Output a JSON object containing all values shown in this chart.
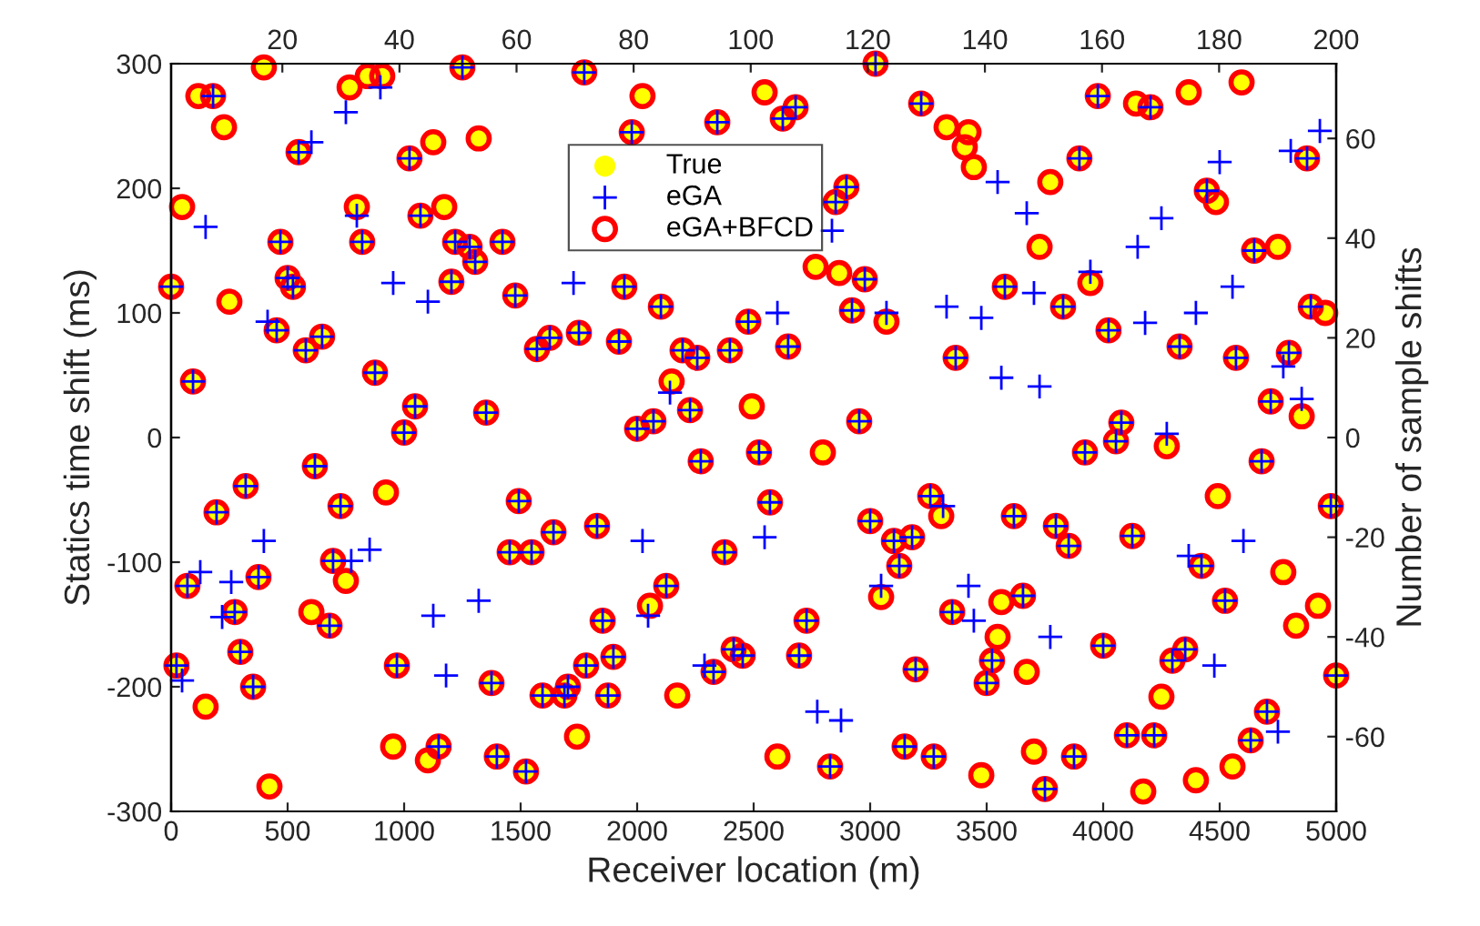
{
  "chart_data": {
    "type": "scatter",
    "xlabel": "Receiver location (m)",
    "ylabel": "Statics time shift (ms)",
    "y2label": "Number of sample shifts",
    "xlim": [
      0,
      5000
    ],
    "xticks": [
      0,
      500,
      1000,
      1500,
      2000,
      2500,
      3000,
      3500,
      4000,
      4500,
      5000
    ],
    "ylim": [
      -300,
      300
    ],
    "yticks": [
      -300,
      -200,
      -100,
      0,
      100,
      200,
      300
    ],
    "y2lim": [
      -75,
      75
    ],
    "y2ticks": [
      -60,
      -40,
      -20,
      0,
      20,
      40,
      60
    ],
    "x2lim": [
      1,
      200
    ],
    "x2ticks": [
      20,
      40,
      60,
      80,
      100,
      120,
      140,
      160,
      180,
      200
    ],
    "grid": false,
    "legend": "top",
    "series": [
      {
        "name": "True",
        "color": "#ffff00",
        "marker": "circle",
        "x": [
          0,
          47,
          94,
          117,
          180,
          227,
          23,
          70,
          195,
          148,
          273,
          320,
          297,
          352,
          398,
          453,
          375,
          469,
          500,
          523,
          422,
          547,
          766,
          844,
          906,
          797,
          820,
          250,
          578,
          648,
          875,
          1047,
          1000,
          1352,
          1023,
          1125,
          1320,
          1250,
          1172,
          1070,
          1203,
          1219,
          1281,
          1305,
          1422,
          1477,
          1570,
          1625,
          1750,
          1773,
          2023,
          1977,
          2344,
          2547,
          2625,
          2680,
          3023,
          3219,
          3328,
          3422,
          3406,
          3445,
          2898,
          2852,
          2766,
          2867,
          2977,
          1945,
          2102,
          2477,
          2922,
          3070,
          3578,
          1922,
          2195,
          2258,
          2398,
          2648,
          3367,
          2148,
          2227,
          2492,
          2953,
          2000,
          2070,
          3977,
          4141,
          4203,
          4367,
          4594,
          3898,
          3773,
          3727,
          3945,
          3828,
          4445,
          4484,
          4023,
          4328,
          4570,
          4648,
          4750,
          4891,
          4953,
          4875,
          4797,
          4719,
          4852,
          4078,
          4055,
          617,
          727,
          922,
          1492,
          1641,
          1453,
          1547,
          1828,
          695,
          750,
          602,
          680,
          969,
          1375,
          1594,
          1688,
          1703,
          1781,
          1742,
          953,
          1102,
          1148,
          1398,
          1523,
          2273,
          2523,
          2797,
          2570,
          2375,
          3000,
          3102,
          3180,
          3258,
          3305,
          3125,
          3047,
          3352,
          3563,
          3547,
          3523,
          3500,
          2125,
          2055,
          1852,
          2727,
          1898,
          1875,
          2172,
          2328,
          2414,
          2453,
          2695,
          3195,
          2602,
          2828,
          3148,
          3273,
          3477,
          3922,
          4273,
          4680,
          4492,
          4977,
          3617,
          3797,
          3852,
          4125,
          4422,
          4773,
          3656,
          4523,
          4922,
          4828,
          4000,
          4352,
          4297,
          5000,
          3672,
          4250,
          4703,
          4102,
          4219,
          4633,
          3703,
          3875,
          4555,
          4398,
          3750,
          4172
        ],
        "values": [
          121,
          185,
          45,
          274,
          274,
          249,
          -183,
          -119,
          -60,
          -216,
          -140,
          -39,
          -172,
          -200,
          297,
          86,
          -112,
          157,
          128,
          121,
          -280,
          229,
          281,
          290,
          290,
          185,
          157,
          109,
          70,
          81,
          52,
          25,
          4,
          20,
          224,
          237,
          240,
          297,
          185,
          178,
          125,
          157,
          153,
          141,
          157,
          114,
          71,
          80,
          84,
          293,
          274,
          245,
          253,
          277,
          256,
          265,
          300,
          268,
          249,
          245,
          233,
          217,
          201,
          189,
          137,
          132,
          127,
          121,
          105,
          93,
          102,
          93,
          121,
          77,
          70,
          64,
          70,
          73,
          64,
          45,
          22,
          25,
          13,
          7,
          13,
          274,
          268,
          265,
          277,
          285,
          224,
          205,
          153,
          124,
          105,
          198,
          189,
          86,
          73,
          64,
          150,
          153,
          105,
          100,
          224,
          68,
          29,
          17,
          12,
          -3,
          -23,
          -55,
          -44,
          -51,
          -76,
          -92,
          -92,
          -71,
          -99,
          -115,
          -140,
          -151,
          -183,
          -197,
          -207,
          -207,
          -200,
          -183,
          -240,
          -248,
          -259,
          -248,
          -256,
          -268,
          -19,
          -12,
          -12,
          -52,
          -92,
          -67,
          -83,
          -80,
          -47,
          -63,
          -103,
          -128,
          -140,
          -132,
          -160,
          -179,
          -197,
          -119,
          -135,
          -147,
          -147,
          -176,
          -207,
          -207,
          -188,
          -170,
          -175,
          -175,
          -186,
          -256,
          -264,
          -248,
          -256,
          -271,
          -12,
          -7,
          -19,
          -47,
          -55,
          -63,
          -71,
          -87,
          -79,
          -103,
          -108,
          -127,
          -131,
          -135,
          -151,
          -167,
          -170,
          -179,
          -191,
          -188,
          -208,
          -220,
          -239,
          -239,
          -243,
          -252,
          -256,
          -264,
          -275,
          -282,
          -284
        ]
      },
      {
        "name": "eGA",
        "color": "#0000ff",
        "marker": "cross",
        "x": [
          0,
          94,
          180,
          23,
          70,
          195,
          273,
          320,
          297,
          352,
          453,
          375,
          469,
          500,
          523,
          547,
          820,
          578,
          648,
          875,
          1047,
          1000,
          1352,
          1023,
          1250,
          1070,
          1203,
          1219,
          1281,
          1305,
          1422,
          1477,
          1570,
          1625,
          1750,
          1773,
          1977,
          2344,
          2625,
          2680,
          3023,
          3219,
          2898,
          2852,
          2977,
          1945,
          2102,
          2477,
          2922,
          3578,
          1922,
          2195,
          2258,
          2398,
          2648,
          3367,
          2227,
          2953,
          2000,
          2070,
          3977,
          4203,
          3898,
          3828,
          4445,
          4023,
          4328,
          4570,
          4648,
          4891,
          4875,
          4797,
          4719,
          4078,
          4055,
          617,
          727,
          1492,
          1641,
          1453,
          1547,
          1828,
          695,
          680,
          969,
          1375,
          1594,
          1688,
          1703,
          1781,
          1148,
          1398,
          1523,
          2273,
          2523,
          2570,
          2375,
          3000,
          3102,
          3180,
          3258,
          3125,
          3352,
          3523,
          3500,
          2125,
          1852,
          2727,
          1898,
          1875,
          2328,
          2414,
          2453,
          2695,
          3195,
          2828,
          3148,
          3273,
          3922,
          4680,
          4977,
          3617,
          3797,
          3852,
          4125,
          4422,
          3656,
          4523,
          4000,
          4352,
          4297,
          5000,
          4703,
          4102,
          4219,
          4633,
          3875,
          3750,
          148,
          602,
          750,
          898,
          797,
          414,
          953,
          1102,
          1727,
          2836,
          2602,
          3070,
          3328,
          3477,
          3563,
          2141,
          3547,
          3672,
          3703,
          3945,
          4148,
          4250,
          4500,
          4555,
          4180,
          4398,
          4805,
          4930,
          4773,
          4852,
          3727,
          125,
          258,
          398,
          773,
          852,
          219,
          1125,
          1320,
          47,
          1180,
          2023,
          2547,
          3047,
          3313,
          3422,
          3445,
          2047,
          2289,
          2773,
          2875,
          4273,
          4367,
          4602,
          3773,
          4477,
          4750
        ],
        "values": [
          121,
          45,
          274,
          -183,
          -119,
          -60,
          -140,
          -39,
          -172,
          -200,
          86,
          -112,
          157,
          128,
          121,
          229,
          157,
          70,
          81,
          52,
          25,
          4,
          20,
          224,
          297,
          178,
          125,
          157,
          153,
          141,
          157,
          114,
          71,
          80,
          84,
          293,
          245,
          253,
          256,
          265,
          300,
          268,
          201,
          189,
          127,
          121,
          105,
          93,
          102,
          121,
          77,
          70,
          64,
          70,
          73,
          64,
          22,
          13,
          7,
          13,
          274,
          265,
          224,
          105,
          198,
          86,
          73,
          64,
          150,
          105,
          224,
          68,
          29,
          12,
          -3,
          -23,
          -55,
          -51,
          -76,
          -92,
          -92,
          -71,
          -99,
          -151,
          -183,
          -197,
          -207,
          -207,
          -200,
          -183,
          -248,
          -256,
          -268,
          -19,
          -12,
          -52,
          -92,
          -67,
          -83,
          -80,
          -47,
          -103,
          -140,
          -179,
          -197,
          -119,
          -147,
          -147,
          -176,
          -207,
          -188,
          -170,
          -175,
          -175,
          -186,
          -264,
          -248,
          -256,
          -12,
          -19,
          -55,
          -63,
          -71,
          -87,
          -79,
          -103,
          -127,
          -131,
          -167,
          -170,
          -179,
          -191,
          -220,
          -239,
          -239,
          -243,
          -256,
          -282,
          169,
          237,
          261,
          281,
          178,
          93,
          124,
          109,
          124,
          166,
          100,
          100,
          105,
          96,
          48,
          36,
          205,
          180,
          116,
          133,
          153,
          176,
          221,
          121,
          92,
          100,
          230,
          246,
          57,
          31,
          41,
          -108,
          -116,
          -83,
          -99,
          -90,
          -144,
          -143,
          -131,
          -195,
          -191,
          -83,
          -80,
          -119,
          -55,
          -119,
          -147,
          -143,
          -183,
          -220,
          -227,
          3,
          -95,
          -83,
          -160,
          -183,
          -236
        ]
      },
      {
        "name": "eGA+BFCD",
        "color": "#ff0000",
        "marker": "circle",
        "x": [
          0,
          47,
          94,
          117,
          180,
          227,
          23,
          70,
          195,
          148,
          273,
          320,
          297,
          352,
          398,
          453,
          375,
          469,
          500,
          523,
          422,
          547,
          766,
          844,
          906,
          797,
          820,
          250,
          578,
          648,
          875,
          1047,
          1000,
          1352,
          1023,
          1125,
          1320,
          1250,
          1172,
          1070,
          1203,
          1219,
          1281,
          1305,
          1422,
          1477,
          1570,
          1625,
          1750,
          1773,
          2023,
          1977,
          2344,
          2547,
          2625,
          2680,
          3023,
          3219,
          3328,
          3422,
          3406,
          3445,
          2898,
          2852,
          2766,
          2867,
          2977,
          1945,
          2102,
          2477,
          2922,
          3070,
          3578,
          1922,
          2195,
          2258,
          2398,
          2648,
          3367,
          2148,
          2227,
          2492,
          2953,
          2000,
          2070,
          3977,
          4141,
          4203,
          4367,
          4594,
          3898,
          3773,
          3727,
          3945,
          3828,
          4445,
          4484,
          4023,
          4328,
          4570,
          4648,
          4750,
          4891,
          4953,
          4875,
          4797,
          4719,
          4852,
          4078,
          4055,
          617,
          727,
          922,
          1492,
          1641,
          1453,
          1547,
          1828,
          695,
          750,
          602,
          680,
          969,
          1375,
          1594,
          1688,
          1703,
          1781,
          1742,
          953,
          1102,
          1148,
          1398,
          1523,
          2273,
          2523,
          2797,
          2570,
          2375,
          3000,
          3102,
          3180,
          3258,
          3305,
          3125,
          3047,
          3352,
          3563,
          3547,
          3523,
          3500,
          2125,
          2055,
          1852,
          2727,
          1898,
          1875,
          2172,
          2328,
          2414,
          2453,
          2695,
          3195,
          2602,
          2828,
          3148,
          3273,
          3477,
          3922,
          4273,
          4680,
          4492,
          4977,
          3617,
          3797,
          3852,
          4125,
          4422,
          4773,
          3656,
          4523,
          4922,
          4828,
          4000,
          4352,
          4297,
          5000,
          3672,
          4250,
          4703,
          4102,
          4219,
          4633,
          3703,
          3875,
          4555,
          4398,
          3750,
          4172
        ],
        "values": [
          121,
          185,
          45,
          274,
          274,
          249,
          -183,
          -119,
          -60,
          -216,
          -140,
          -39,
          -172,
          -200,
          297,
          86,
          -112,
          157,
          128,
          121,
          -280,
          229,
          281,
          290,
          290,
          185,
          157,
          109,
          70,
          81,
          52,
          25,
          4,
          20,
          224,
          237,
          240,
          297,
          185,
          178,
          125,
          157,
          153,
          141,
          157,
          114,
          71,
          80,
          84,
          293,
          274,
          245,
          253,
          277,
          256,
          265,
          300,
          268,
          249,
          245,
          233,
          217,
          201,
          189,
          137,
          132,
          127,
          121,
          105,
          93,
          102,
          93,
          121,
          77,
          70,
          64,
          70,
          73,
          64,
          45,
          22,
          25,
          13,
          7,
          13,
          274,
          268,
          265,
          277,
          285,
          224,
          205,
          153,
          124,
          105,
          198,
          189,
          86,
          73,
          64,
          150,
          153,
          105,
          100,
          224,
          68,
          29,
          17,
          12,
          -3,
          -23,
          -55,
          -44,
          -51,
          -76,
          -92,
          -92,
          -71,
          -99,
          -115,
          -140,
          -151,
          -183,
          -197,
          -207,
          -207,
          -200,
          -183,
          -240,
          -248,
          -259,
          -248,
          -256,
          -268,
          -19,
          -12,
          -12,
          -52,
          -92,
          -67,
          -83,
          -80,
          -47,
          -63,
          -103,
          -128,
          -140,
          -132,
          -160,
          -179,
          -197,
          -119,
          -135,
          -147,
          -147,
          -176,
          -207,
          -207,
          -188,
          -170,
          -175,
          -175,
          -186,
          -256,
          -264,
          -248,
          -256,
          -271,
          -12,
          -7,
          -19,
          -47,
          -55,
          -63,
          -71,
          -87,
          -79,
          -103,
          -108,
          -127,
          -131,
          -135,
          -151,
          -167,
          -170,
          -179,
          -191,
          -188,
          -208,
          -220,
          -239,
          -239,
          -243,
          -252,
          -256,
          -264,
          -275,
          -282,
          -284
        ]
      }
    ]
  }
}
